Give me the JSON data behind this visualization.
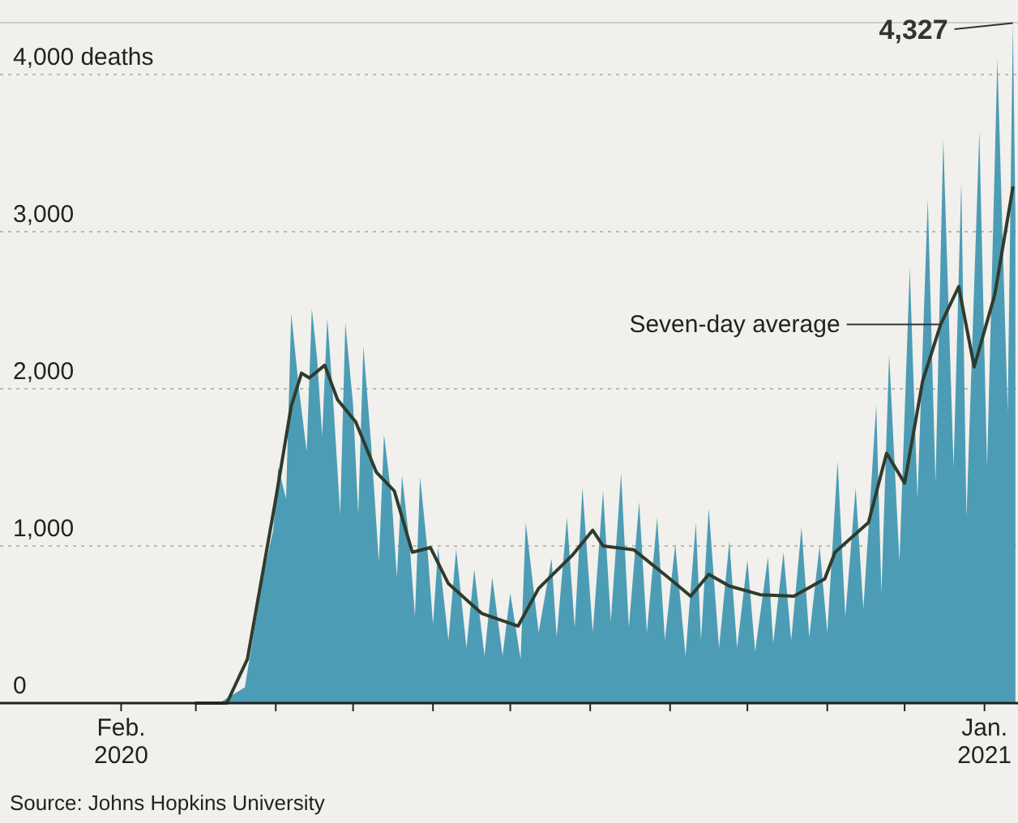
{
  "chart_data": {
    "type": "area",
    "xlim": [
      "2019-12-16",
      "2021-01-14"
    ],
    "ylim": [
      0,
      4330
    ],
    "xticks": [
      {
        "value": "2020-02-01",
        "label": "Feb.\n2020"
      },
      {
        "value": "2020-03-01",
        "label": null
      },
      {
        "value": "2020-04-01",
        "label": null
      },
      {
        "value": "2020-05-01",
        "label": null
      },
      {
        "value": "2020-06-01",
        "label": null
      },
      {
        "value": "2020-07-01",
        "label": null
      },
      {
        "value": "2020-08-01",
        "label": null
      },
      {
        "value": "2020-09-01",
        "label": null
      },
      {
        "value": "2020-10-01",
        "label": null
      },
      {
        "value": "2020-11-01",
        "label": null
      },
      {
        "value": "2020-12-01",
        "label": null
      },
      {
        "value": "2021-01-01",
        "label": "Jan.\n2021"
      }
    ],
    "yticks": [
      0,
      {
        "value": 1000,
        "label": "1,000"
      },
      {
        "value": 2000,
        "label": "2,000"
      },
      {
        "value": 3000,
        "label": "3,000"
      },
      {
        "value": 4000,
        "label": "4,000 deaths"
      }
    ],
    "grid": "y",
    "series": [
      {
        "color": "#4d9cb5",
        "x": [
          "2020-03-01",
          "2020-03-10",
          "2020-03-20",
          "2020-03-27",
          "2020-03-31",
          "2020-04-02",
          "2020-04-05",
          "2020-04-07",
          "2020-04-10",
          "2020-04-13",
          "2020-04-15",
          "2020-04-17",
          "2020-04-19",
          "2020-04-21",
          "2020-04-23",
          "2020-04-26",
          "2020-04-28",
          "2020-05-01",
          "2020-05-03",
          "2020-05-05",
          "2020-05-08",
          "2020-05-11",
          "2020-05-13",
          "2020-05-16",
          "2020-05-18",
          "2020-05-20",
          "2020-05-23",
          "2020-05-25",
          "2020-05-27",
          "2020-05-30",
          "2020-06-01",
          "2020-06-03",
          "2020-06-07",
          "2020-06-10",
          "2020-06-14",
          "2020-06-17",
          "2020-06-21",
          "2020-06-24",
          "2020-06-28",
          "2020-07-01",
          "2020-07-05",
          "2020-07-07",
          "2020-07-12",
          "2020-07-17",
          "2020-07-19",
          "2020-07-23",
          "2020-07-26",
          "2020-07-29",
          "2020-08-02",
          "2020-08-06",
          "2020-08-09",
          "2020-08-13",
          "2020-08-16",
          "2020-08-20",
          "2020-08-23",
          "2020-08-27",
          "2020-08-30",
          "2020-09-03",
          "2020-09-07",
          "2020-09-11",
          "2020-09-13",
          "2020-09-16",
          "2020-09-20",
          "2020-09-24",
          "2020-09-27",
          "2020-10-01",
          "2020-10-04",
          "2020-10-09",
          "2020-10-11",
          "2020-10-15",
          "2020-10-18",
          "2020-10-22",
          "2020-10-25",
          "2020-10-29",
          "2020-11-01",
          "2020-11-05",
          "2020-11-08",
          "2020-11-12",
          "2020-11-15",
          "2020-11-20",
          "2020-11-22",
          "2020-11-25",
          "2020-11-29",
          "2020-12-03",
          "2020-12-06",
          "2020-12-10",
          "2020-12-13",
          "2020-12-16",
          "2020-12-20",
          "2020-12-23",
          "2020-12-25",
          "2020-12-30",
          "2021-01-02",
          "2021-01-06",
          "2021-01-10",
          "2021-01-12",
          "2021-01-13"
        ],
        "values": [
          0,
          0,
          100,
          800,
          1100,
          1500,
          1300,
          2480,
          2000,
          1600,
          2510,
          2200,
          1700,
          2450,
          2000,
          1200,
          2420,
          1900,
          1200,
          2270,
          1650,
          900,
          1710,
          1300,
          800,
          1450,
          1000,
          550,
          1440,
          950,
          500,
          990,
          400,
          980,
          350,
          850,
          300,
          800,
          300,
          700,
          280,
          1150,
          450,
          920,
          420,
          1180,
          480,
          1370,
          450,
          1350,
          520,
          1460,
          480,
          1280,
          450,
          1180,
          400,
          1010,
          300,
          1150,
          400,
          1240,
          350,
          1030,
          350,
          910,
          330,
          930,
          380,
          960,
          400,
          1120,
          420,
          1000,
          450,
          1540,
          550,
          1370,
          600,
          1900,
          700,
          2220,
          900,
          2770,
          1300,
          3210,
          1400,
          3590,
          1500,
          3320,
          1180,
          3640,
          1500,
          4100,
          1850,
          4327,
          3100
        ]
      },
      {
        "type": "line",
        "name": "Seven-day average",
        "color": "#2f3b2c",
        "x": [
          "2020-03-01",
          "2020-03-13",
          "2020-03-21",
          "2020-04-01",
          "2020-04-07",
          "2020-04-11",
          "2020-04-14",
          "2020-04-20",
          "2020-04-25",
          "2020-05-02",
          "2020-05-10",
          "2020-05-17",
          "2020-05-24",
          "2020-05-31",
          "2020-06-07",
          "2020-06-20",
          "2020-07-04",
          "2020-07-12",
          "2020-07-25",
          "2020-08-02",
          "2020-08-06",
          "2020-08-18",
          "2020-09-01",
          "2020-09-09",
          "2020-09-16",
          "2020-09-24",
          "2020-10-06",
          "2020-10-19",
          "2020-10-31",
          "2020-11-04",
          "2020-11-17",
          "2020-11-24",
          "2020-12-01",
          "2020-12-08",
          "2020-12-15",
          "2020-12-22",
          "2020-12-28",
          "2021-01-05",
          "2021-01-12"
        ],
        "values": [
          0,
          0,
          280,
          1300,
          1890,
          2100,
          2070,
          2150,
          1930,
          1790,
          1470,
          1350,
          960,
          990,
          760,
          570,
          490,
          730,
          940,
          1100,
          1000,
          975,
          790,
          680,
          820,
          745,
          690,
          680,
          790,
          960,
          1150,
          1590,
          1400,
          2050,
          2410,
          2650,
          2140,
          2600,
          3280
        ]
      }
    ],
    "annotations": [
      {
        "text": "4,327",
        "x": "2021-01-12",
        "y": 4327
      },
      "Source: Johns Hopkins University"
    ]
  }
}
